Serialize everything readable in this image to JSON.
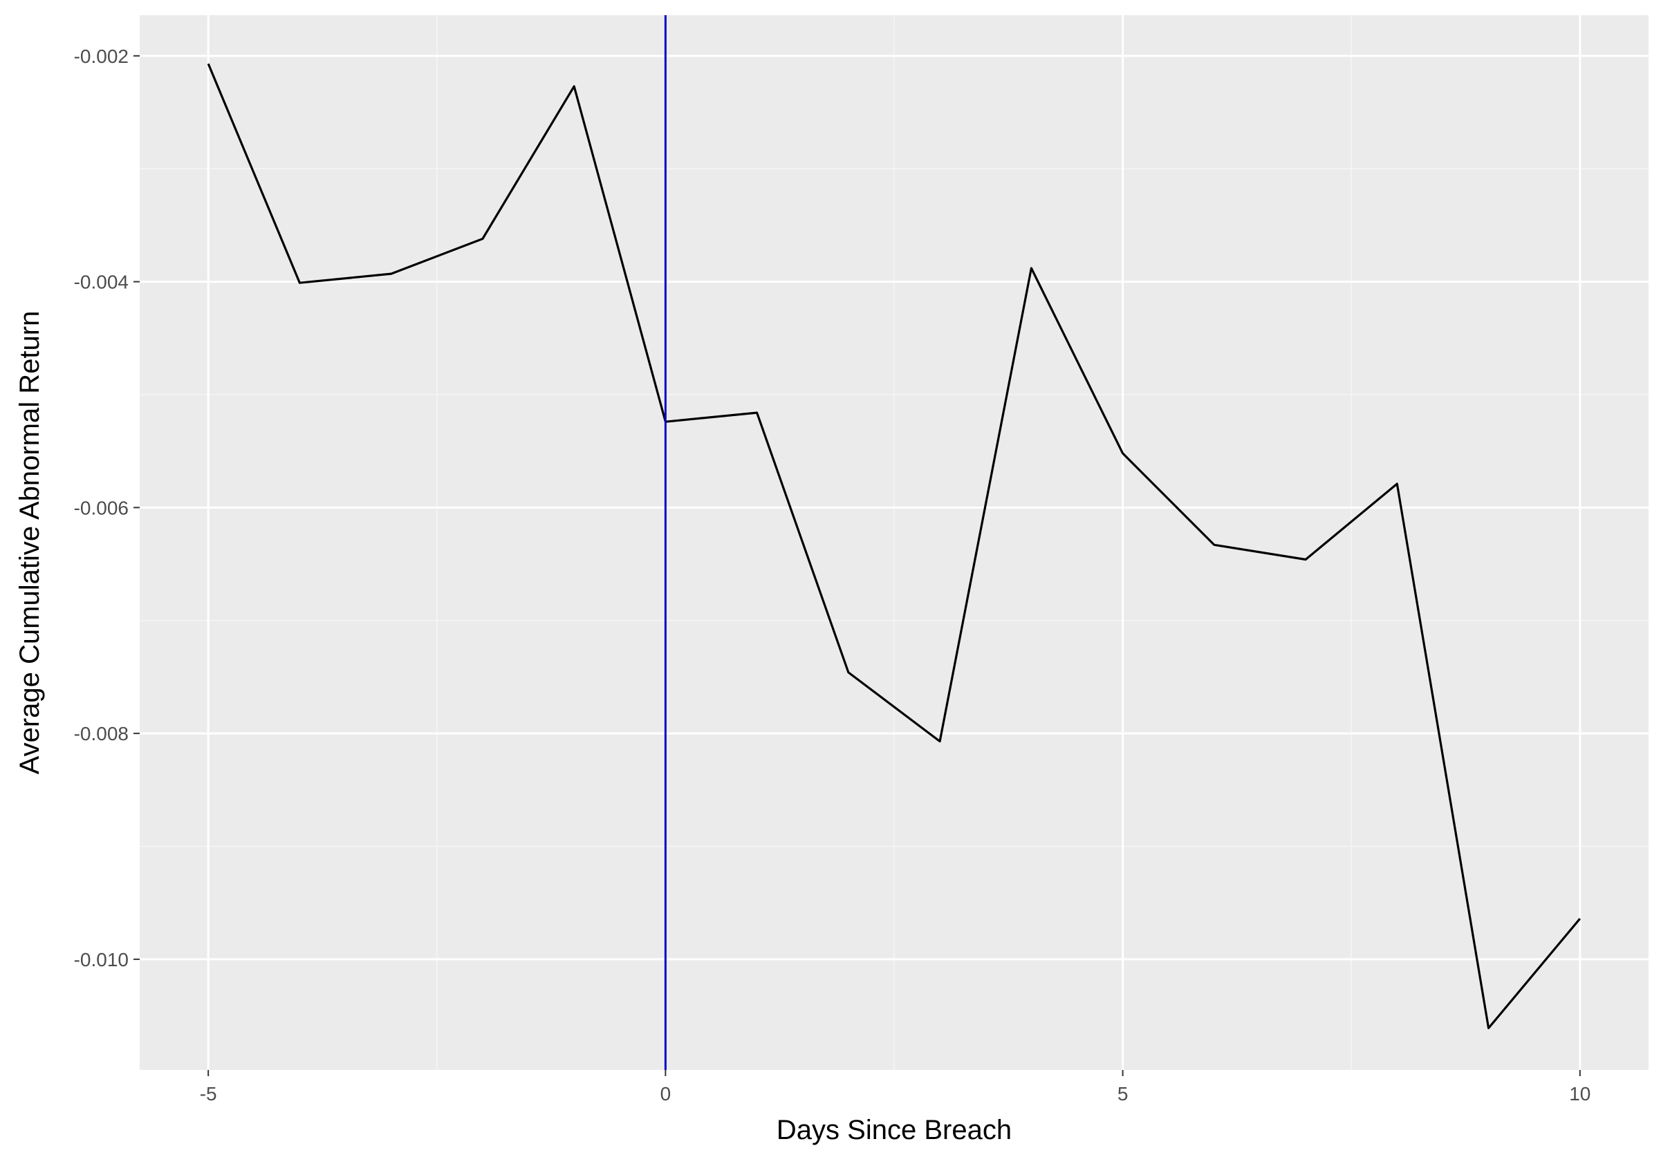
{
  "colors": {
    "panel_background": "#ebebeb",
    "grid_major": "#ffffff",
    "grid_minor": "#f5f5f5",
    "series_line": "#000000",
    "reference_line": "#0000cc",
    "tick_label": "#4d4d4d",
    "axis_title": "#000000"
  },
  "chart_data": {
    "type": "line",
    "title": "",
    "xlabel": "Days Since Breach",
    "ylabel": "Average Cumulative Abnormal Return",
    "xlim": [
      -5.75,
      10.75
    ],
    "ylim": [
      -0.01098,
      -0.00164
    ],
    "x_ticks": [
      -5,
      0,
      5,
      10
    ],
    "x_tick_labels": [
      "-5",
      "0",
      "5",
      "10"
    ],
    "y_ticks": [
      -0.002,
      -0.004,
      -0.006,
      -0.008,
      -0.01
    ],
    "y_tick_labels": [
      "-0.002",
      "-0.004",
      "-0.006",
      "-0.008",
      "-0.010"
    ],
    "grid": true,
    "legend": "none",
    "vertical_reference_line": {
      "x": 0
    },
    "series": [
      {
        "x": [
          -5,
          -4,
          -3,
          -2,
          -1,
          0,
          1,
          2,
          3,
          4,
          5,
          6,
          7,
          8,
          9,
          10
        ],
        "values": [
          -0.00207,
          -0.00401,
          -0.00393,
          -0.00362,
          -0.00227,
          -0.00524,
          -0.00516,
          -0.00746,
          -0.00807,
          -0.00388,
          -0.00552,
          -0.00633,
          -0.00646,
          -0.00579,
          -0.01061,
          -0.00964
        ]
      }
    ]
  }
}
